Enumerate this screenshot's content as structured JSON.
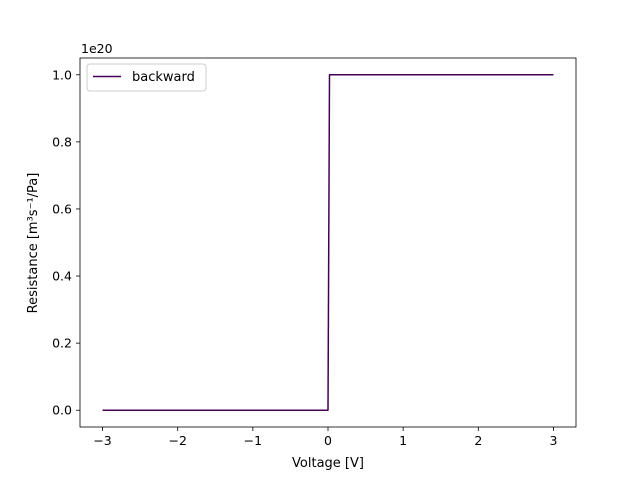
{
  "chart_data": {
    "type": "line",
    "xlabel": "Voltage [V]",
    "ylabel": "Resistance [m³s⁻¹/Pa]",
    "y_offset_label": "1e20",
    "x_ticks": [
      -3,
      -2,
      -1,
      0,
      1,
      2,
      3
    ],
    "x_tick_labels": [
      "−3",
      "−2",
      "−1",
      "0",
      "1",
      "2",
      "3"
    ],
    "y_ticks": [
      0.0,
      0.2,
      0.4,
      0.6,
      0.8,
      1.0
    ],
    "y_tick_labels": [
      "0.0",
      "0.2",
      "0.4",
      "0.6",
      "0.8",
      "1.0"
    ],
    "xlim": [
      -3.3,
      3.3
    ],
    "ylim": [
      -0.05,
      1.05
    ],
    "y_scale_factor": 1e+20,
    "grid": false,
    "legend_position": "upper-left",
    "series": [
      {
        "name": "backward",
        "color": "#440154",
        "x": [
          -3.0,
          -0.02,
          0.0,
          0.02,
          3.0
        ],
        "y": [
          0.0,
          0.0,
          0.0,
          1.0,
          1.0
        ]
      }
    ]
  }
}
